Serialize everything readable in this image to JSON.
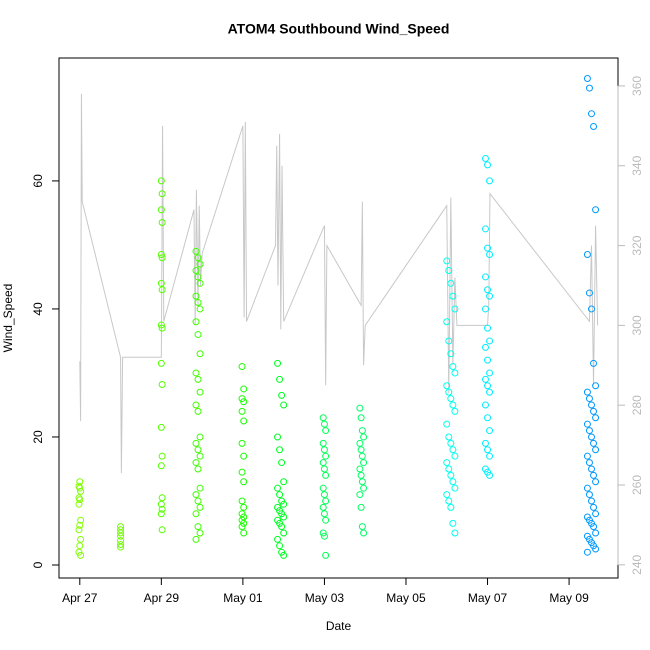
{
  "chart_data": {
    "type": "scatter",
    "title": "ATOM4 Southbound Wind_Speed",
    "xlabel": "Date",
    "ylabel": "Wind_Speed",
    "xlim": [
      26.49,
      40.2
    ],
    "ylim": [
      -2.03,
      79.2
    ],
    "y2lim": [
      236.7,
      367
    ],
    "xticks": [
      {
        "value": 27,
        "label": "Apr 27"
      },
      {
        "value": 29,
        "label": "Apr 29"
      },
      {
        "value": 31,
        "label": "May 01"
      },
      {
        "value": 33,
        "label": "May 03"
      },
      {
        "value": 35,
        "label": "May 05"
      },
      {
        "value": 37,
        "label": "May 07"
      },
      {
        "value": 39,
        "label": "May 09"
      }
    ],
    "yticks": [
      0,
      20,
      40,
      60
    ],
    "y2ticks": [
      240,
      260,
      280,
      300,
      320,
      340,
      360
    ],
    "series": [
      {
        "color": "#c8c8c8",
        "type": "line",
        "axis": "y2",
        "x": [
          27.0,
          27.02,
          27.04,
          27.06,
          28.0,
          28.02,
          28.05,
          29.0,
          29.03,
          29.06,
          29.8,
          29.83,
          29.86,
          29.9,
          29.93,
          29.96,
          30.0,
          31.0,
          31.03,
          31.06,
          31.09,
          31.8,
          31.83,
          31.86,
          31.9,
          31.93,
          31.96,
          32.0,
          33.0,
          33.03,
          33.06,
          33.9,
          33.93,
          33.96,
          34.0,
          36.0,
          36.05,
          36.1,
          36.15,
          36.2,
          36.25,
          37.0,
          37.03,
          37.06,
          39.5,
          39.55,
          39.6,
          39.65,
          39.7
        ],
        "values": [
          291,
          276,
          358,
          331,
          292,
          263,
          292,
          292,
          350,
          301,
          329,
          300,
          334,
          305,
          330,
          310,
          318,
          350,
          302,
          351,
          301,
          320,
          345,
          310,
          348,
          299,
          340,
          301,
          325,
          285,
          320,
          305,
          331,
          290,
          300,
          330,
          283,
          332,
          290,
          312,
          300,
          300,
          305,
          333,
          301,
          320,
          285,
          325,
          300
        ]
      },
      {
        "color": "#80ff00",
        "x": [
          27.0,
          26.98,
          27.02,
          27.0,
          26.98,
          27.02,
          27.0,
          26.98,
          27.02,
          27.0,
          26.98,
          27.02,
          27.0,
          26.98
        ],
        "values": [
          13,
          12.3,
          11.5,
          10.2,
          9.5,
          7,
          6.2,
          5.5,
          4,
          3,
          2,
          1.5,
          12,
          10.5
        ]
      },
      {
        "color": "#70ff00",
        "x": [
          28,
          28,
          28,
          28,
          28,
          28,
          28
        ],
        "values": [
          6,
          5.5,
          5,
          4.5,
          3.8,
          3.2,
          2.8
        ]
      },
      {
        "color": "#55ff00",
        "x": [
          29.0,
          29.02,
          29.0,
          29.02,
          29.0,
          29.02,
          29.0,
          29.02,
          29.0,
          29.02,
          29.0,
          29.02,
          29.0,
          29.02,
          29.0,
          29.02,
          29.0,
          29.02,
          29.0,
          29.02
        ],
        "values": [
          60,
          58,
          55.5,
          53.5,
          48.5,
          48,
          44,
          43,
          37.5,
          37,
          31.5,
          28.2,
          21.5,
          17,
          15.5,
          10.5,
          9.5,
          8.7,
          8,
          5.5
        ]
      },
      {
        "color": "#40ff00",
        "x": [
          29.85,
          29.9,
          29.95,
          29.85,
          29.9,
          29.95,
          29.85,
          29.9,
          29.95,
          29.85,
          29.9,
          29.95,
          29.85,
          29.9,
          29.95,
          29.85,
          29.9,
          29.95,
          29.85,
          29.9,
          29.95,
          29.85,
          29.9,
          29.95,
          29.85,
          29.9,
          29.95,
          29.85,
          29.9,
          29.95,
          29.85
        ],
        "values": [
          49,
          48,
          47,
          46,
          45,
          44,
          42,
          41,
          40,
          38,
          36,
          33,
          30,
          29,
          27,
          25,
          24,
          20,
          19,
          18,
          17,
          16,
          15,
          12,
          11,
          10,
          9,
          8,
          6,
          5,
          4
        ]
      },
      {
        "color": "#1aff00",
        "x": [
          30.98,
          31.02,
          30.98,
          31.02,
          30.98,
          31.02,
          30.98,
          31.02,
          30.98,
          31.02,
          30.98,
          31.02,
          30.98,
          31.02,
          30.98,
          31.02,
          30.98,
          31.02
        ],
        "values": [
          31,
          27.5,
          26,
          25.5,
          24,
          22.5,
          19,
          17,
          14.5,
          13,
          10,
          9,
          8,
          7.5,
          7,
          6.5,
          6,
          5
        ]
      },
      {
        "color": "#00ff22",
        "x": [
          31.85,
          31.9,
          31.95,
          32.0,
          31.85,
          31.9,
          31.95,
          32.0,
          31.85,
          31.9,
          31.95,
          32.0,
          31.85,
          31.9,
          31.95,
          32.0,
          31.85,
          31.9,
          31.95,
          32.0,
          31.85,
          31.9,
          31.95,
          32.0
        ],
        "values": [
          31.5,
          29,
          26.5,
          25,
          20,
          18,
          16,
          13,
          12,
          11,
          10,
          9.5,
          9,
          8.5,
          8,
          7.5,
          7,
          6.5,
          6,
          5,
          4,
          3,
          2,
          1.5
        ]
      },
      {
        "color": "#00ff55",
        "x": [
          32.97,
          33.0,
          33.03,
          32.97,
          33.0,
          33.03,
          32.97,
          33.0,
          33.03,
          32.97,
          33.0,
          33.03,
          32.97,
          33.0,
          33.03,
          32.97,
          33.0,
          33.03
        ],
        "values": [
          23,
          22,
          21,
          19,
          18,
          17,
          16,
          15,
          14,
          12,
          11,
          10,
          9,
          8,
          7,
          5,
          4.5,
          1.5
        ]
      },
      {
        "color": "#00ff66",
        "x": [
          33.87,
          33.9,
          33.93,
          33.96,
          33.87,
          33.9,
          33.93,
          33.96,
          33.87,
          33.9,
          33.93,
          33.96,
          33.87,
          33.9,
          33.93,
          33.96
        ],
        "values": [
          24.5,
          23,
          21,
          20,
          19,
          18,
          17,
          16,
          15,
          14,
          13,
          12,
          11,
          9,
          6,
          5
        ]
      },
      {
        "color": "#00ffee",
        "x": [
          36.0,
          36.05,
          36.1,
          36.15,
          36.2,
          36.0,
          36.05,
          36.1,
          36.15,
          36.2,
          36.0,
          36.05,
          36.1,
          36.15,
          36.2,
          36.0,
          36.05,
          36.1,
          36.15,
          36.2,
          36.0,
          36.05,
          36.1,
          36.15,
          36.2,
          36.0,
          36.05,
          36.1,
          36.15,
          36.2
        ],
        "values": [
          47.5,
          46,
          44,
          42,
          40,
          38,
          35,
          33,
          31,
          30,
          28,
          27,
          26,
          25,
          24,
          22,
          20,
          19,
          18,
          17,
          16,
          15,
          14,
          13,
          12,
          11,
          10,
          9,
          6.5,
          5
        ]
      },
      {
        "color": "#00eeff",
        "x": [
          36.95,
          37.0,
          37.05,
          36.95,
          37.0,
          37.05,
          36.95,
          37.0,
          37.05,
          36.95,
          37.0,
          37.05,
          36.95,
          37.0,
          37.05,
          36.95,
          37.0,
          37.05,
          36.95,
          37.0,
          37.05,
          36.95,
          37.0,
          37.05,
          36.95,
          37.0,
          37.05
        ],
        "values": [
          63.5,
          62.5,
          60,
          52.5,
          49.5,
          48.5,
          45,
          43,
          42,
          40,
          37,
          35,
          34,
          32,
          30,
          29,
          28,
          27,
          25,
          23,
          21,
          19,
          18,
          17,
          15,
          14.5,
          14
        ]
      },
      {
        "color": "#0099ff",
        "x": [
          39.45,
          39.5,
          39.55,
          39.6,
          39.65,
          39.45,
          39.5,
          39.55,
          39.6,
          39.65,
          39.45,
          39.5,
          39.55,
          39.6,
          39.65,
          39.45,
          39.5,
          39.55,
          39.6,
          39.65,
          39.45,
          39.5,
          39.55,
          39.6,
          39.65,
          39.45,
          39.5,
          39.55,
          39.6,
          39.65,
          39.45,
          39.5,
          39.55,
          39.6,
          39.65,
          39.45,
          39.5,
          39.55,
          39.6,
          39.65,
          39.45
        ],
        "values": [
          76,
          74.5,
          70.5,
          68.5,
          55.5,
          48.5,
          42.5,
          40,
          31.5,
          28,
          27,
          26,
          25,
          24,
          23,
          22,
          21,
          20,
          19,
          18,
          17,
          16,
          15,
          14,
          13,
          12,
          11,
          10,
          9,
          8,
          7.5,
          7,
          6.5,
          6,
          5,
          4.5,
          4,
          3.5,
          3,
          2.5,
          2
        ]
      }
    ]
  }
}
